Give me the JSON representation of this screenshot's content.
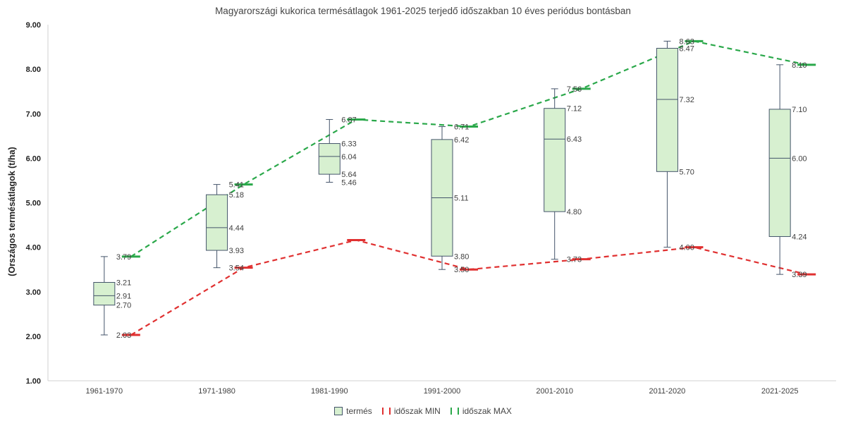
{
  "chart_data": {
    "type": "box",
    "title": "Magyarországi kukorica termésátlagok 1961-2025 terjedő időszakban 10 éves periódus bontásban",
    "xlabel": "",
    "ylabel": "(Országos termésátlagok (t/ha)",
    "ylim": [
      1.0,
      9.0
    ],
    "yticks": [
      "1.00",
      "2.00",
      "3.00",
      "4.00",
      "5.00",
      "6.00",
      "7.00",
      "8.00",
      "9.00"
    ],
    "grid": false,
    "legend_position": "bottom",
    "categories": [
      "1961-1970",
      "1971-1980",
      "1981-1990",
      "1991-2000",
      "2001-2010",
      "2011-2020",
      "2021-2025"
    ],
    "box_series": {
      "name": "termés",
      "color": "#d7f0d0",
      "stroke": "#44546a",
      "boxes": [
        {
          "min": 2.03,
          "q1": 2.7,
          "median": 2.91,
          "q3": 3.21,
          "max": 3.79,
          "labels": [
            "3.79",
            "3.21",
            "2.91",
            "2.70",
            "2.03"
          ]
        },
        {
          "min": 3.54,
          "q1": 3.93,
          "median": 4.44,
          "q3": 5.18,
          "max": 5.41,
          "labels": [
            "5.41",
            "5.18",
            "4.44",
            "3.93",
            "3.54"
          ]
        },
        {
          "min": 5.46,
          "q1": 5.64,
          "median": 6.04,
          "q3": 6.33,
          "max": 6.87,
          "labels": [
            "6.87",
            "6.33",
            "6.04",
            "5.64",
            "5.46"
          ]
        },
        {
          "min": 3.5,
          "q1": 3.8,
          "median": 5.11,
          "q3": 6.42,
          "max": 6.71,
          "labels": [
            "6.71",
            "6.42",
            "5.11",
            "3.80",
            "3.50"
          ]
        },
        {
          "min": 3.73,
          "q1": 4.8,
          "median": 6.43,
          "q3": 7.12,
          "max": 7.56,
          "labels": [
            "7.56",
            "7.12",
            "6.43",
            "4.80",
            "3.73"
          ]
        },
        {
          "min": 4.0,
          "q1": 5.7,
          "median": 7.32,
          "q3": 8.47,
          "max": 8.63,
          "labels": [
            "8.63",
            "8.47",
            "7.32",
            "5.70",
            "4.00"
          ]
        },
        {
          "min": 3.39,
          "q1": 4.24,
          "median": 6.0,
          "q3": 7.1,
          "max": 8.1,
          "labels": [
            "8.10",
            "7.10",
            "6.00",
            "4.24",
            "3.39"
          ]
        }
      ]
    },
    "series": [
      {
        "name": "időszak MIN",
        "color": "#e03030",
        "values": [
          2.03,
          3.54,
          4.16,
          3.5,
          3.73,
          4.0,
          3.39
        ]
      },
      {
        "name": "időszak MAX",
        "color": "#2aa84a",
        "values": [
          3.79,
          5.41,
          6.87,
          6.71,
          7.56,
          8.63,
          8.1
        ]
      }
    ]
  },
  "legend": {
    "items": [
      {
        "label": "termés",
        "kind": "box"
      },
      {
        "label": "időszak MIN",
        "kind": "line",
        "color": "#e03030"
      },
      {
        "label": "időszak MAX",
        "kind": "line",
        "color": "#2aa84a"
      }
    ]
  }
}
